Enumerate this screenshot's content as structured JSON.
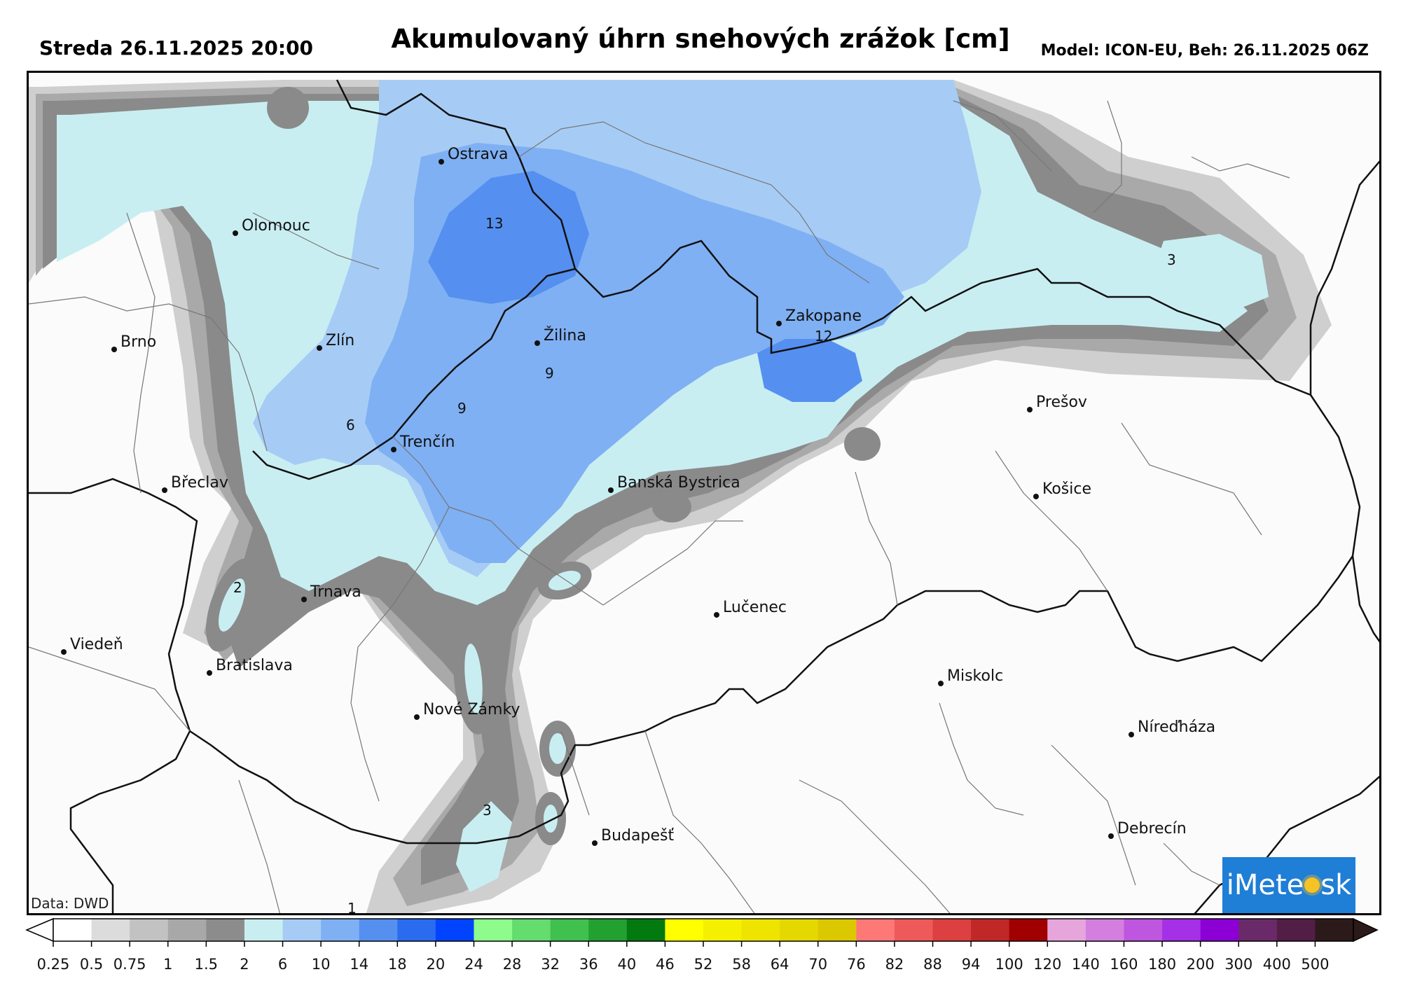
{
  "header": {
    "left": "Streda 26.11.2025 20:00",
    "title": "Akumulovaný úhrn snehových zrážok [cm]",
    "right": "Model: ICON-EU, Beh: 26.11.2025 06Z"
  },
  "map": {
    "cities": [
      {
        "name": "Ostrava"
      },
      {
        "name": "Olomouc"
      },
      {
        "name": "Brno"
      },
      {
        "name": "Zlín"
      },
      {
        "name": "Žilina"
      },
      {
        "name": "Zakopane"
      },
      {
        "name": "Trenčín"
      },
      {
        "name": "Břeclav"
      },
      {
        "name": "Banská Bystrica"
      },
      {
        "name": "Prešov"
      },
      {
        "name": "Košice"
      },
      {
        "name": "Trnava"
      },
      {
        "name": "Lučenec"
      },
      {
        "name": "Viedeň"
      },
      {
        "name": "Bratislava"
      },
      {
        "name": "Miskolc"
      },
      {
        "name": "Nové Zámky"
      },
      {
        "name": "Níreďháza"
      },
      {
        "name": "Budapešť"
      },
      {
        "name": "Debrecín"
      }
    ],
    "contour_labels": [
      "13",
      "12",
      "9",
      "9",
      "6",
      "3",
      "2",
      "3",
      "1"
    ],
    "data_credit": "Data: DWD",
    "logo_parts": [
      "iMete",
      "sk"
    ]
  },
  "legend": {
    "ticks": [
      "0.25",
      "0.5",
      "0.75",
      "1",
      "1.5",
      "2",
      "6",
      "10",
      "14",
      "18",
      "20",
      "24",
      "28",
      "32",
      "36",
      "40",
      "46",
      "52",
      "58",
      "64",
      "70",
      "76",
      "82",
      "88",
      "94",
      "100",
      "120",
      "140",
      "160",
      "180",
      "200",
      "300",
      "400",
      "500"
    ],
    "colors": [
      "#ffffff",
      "#dcdcdc",
      "#c2c2c2",
      "#a8a8a8",
      "#8c8c8c",
      "#c9eef2",
      "#a6ccf5",
      "#7fb0f3",
      "#5590f0",
      "#2a6cf0",
      "#0044ff",
      "#8dfc8d",
      "#64dc6e",
      "#40c04e",
      "#22a030",
      "#027a10",
      "#ffff00",
      "#f5ef00",
      "#eee400",
      "#e5d800",
      "#dcc800",
      "#ff7878",
      "#ee5a5a",
      "#dc4040",
      "#c02828",
      "#a00000",
      "#e6a6dc",
      "#d47ee0",
      "#be56e0",
      "#a630e6",
      "#8c00d6",
      "#6a2a6a",
      "#521e46",
      "#2c1a1a"
    ]
  }
}
